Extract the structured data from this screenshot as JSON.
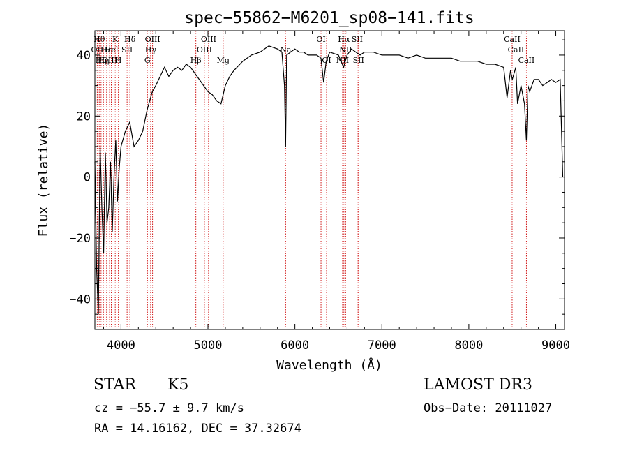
{
  "chart_data": {
    "type": "line",
    "title": "spec−55862−M6201_sp08−141.fits",
    "xlabel": "Wavelength (Å)",
    "ylabel": "Flux (relative)",
    "xlim": [
      3700,
      9100
    ],
    "ylim": [
      -50,
      48
    ],
    "xticks": [
      4000,
      5000,
      6000,
      7000,
      8000,
      9000
    ],
    "yticks": [
      -40,
      -20,
      0,
      20,
      40
    ],
    "grid": false,
    "line_color": "#000000",
    "marker_color": "#cc0000",
    "series": [
      {
        "x": [
          3700,
          3720,
          3740,
          3760,
          3780,
          3800,
          3820,
          3840,
          3860,
          3880,
          3900,
          3920,
          3940,
          3960,
          3980,
          4000,
          4050,
          4100,
          4150,
          4200,
          4250,
          4300,
          4330,
          4360,
          4400,
          4450,
          4500,
          4550,
          4600,
          4650,
          4700,
          4750,
          4800,
          4850,
          4900,
          4950,
          5000,
          5050,
          5100,
          5150,
          5200,
          5250,
          5300,
          5400,
          5500,
          5600,
          5700,
          5800,
          5850,
          5880,
          5893,
          5905,
          5950,
          6000,
          6050,
          6100,
          6150,
          6200,
          6250,
          6300,
          6330,
          6360,
          6400,
          6500,
          6560,
          6600,
          6650,
          6700,
          6750,
          6800,
          6900,
          7000,
          7100,
          7200,
          7300,
          7400,
          7500,
          7600,
          7700,
          7800,
          7900,
          8000,
          8100,
          8200,
          8300,
          8400,
          8440,
          8480,
          8500,
          8540,
          8560,
          8600,
          8640,
          8662,
          8680,
          8700,
          8750,
          8800,
          8850,
          8900,
          8950,
          9000,
          9050,
          9080
        ],
        "y": [
          5,
          -30,
          -45,
          10,
          -10,
          -25,
          8,
          -15,
          -10,
          5,
          -18,
          0,
          12,
          -8,
          3,
          10,
          15,
          18,
          10,
          12,
          15,
          22,
          25,
          28,
          30,
          33,
          36,
          33,
          35,
          36,
          35,
          37,
          36,
          34,
          32,
          30,
          28,
          27,
          25,
          24,
          30,
          33,
          35,
          38,
          40,
          41,
          43,
          42,
          41,
          30,
          10,
          40,
          41,
          42,
          41,
          41,
          40,
          40,
          40,
          39,
          31,
          38,
          41,
          40,
          36,
          40,
          42,
          41,
          40,
          41,
          41,
          40,
          40,
          40,
          39,
          40,
          39,
          39,
          39,
          39,
          38,
          38,
          38,
          37,
          37,
          36,
          26,
          35,
          32,
          36,
          24,
          30,
          24,
          12,
          30,
          28,
          32,
          32,
          30,
          31,
          32,
          31,
          32,
          0
        ]
      }
    ],
    "line_markers": [
      {
        "x": 3727,
        "label": "OII",
        "row": 1
      },
      {
        "x": 3750,
        "label": "Hθ",
        "row": 0
      },
      {
        "x": 3771,
        "label": "Hη",
        "row": 2
      },
      {
        "x": 3798,
        "label": "Hη",
        "row": 2
      },
      {
        "x": 3835,
        "label": "Hε",
        "row": 1
      },
      {
        "x": 3869,
        "label": "OIII",
        "row": 2
      },
      {
        "x": 3889,
        "label": "Hel",
        "row": 1
      },
      {
        "x": 3934,
        "label": "K",
        "row": 0
      },
      {
        "x": 3970,
        "label": "H",
        "row": 2
      },
      {
        "x": 4070,
        "label": "SII",
        "row": 1
      },
      {
        "x": 4102,
        "label": "Hδ",
        "row": 0
      },
      {
        "x": 4304,
        "label": "G",
        "row": 2
      },
      {
        "x": 4341,
        "label": "Hγ",
        "row": 1
      },
      {
        "x": 4363,
        "label": "OIII",
        "row": 0
      },
      {
        "x": 4861,
        "label": "Hβ",
        "row": 2
      },
      {
        "x": 4959,
        "label": "OIII",
        "row": 1
      },
      {
        "x": 5007,
        "label": "OIII",
        "row": 0
      },
      {
        "x": 5175,
        "label": "Mg",
        "row": 2
      },
      {
        "x": 5893,
        "label": "Na",
        "row": 1
      },
      {
        "x": 6300,
        "label": "OI",
        "row": 0
      },
      {
        "x": 6364,
        "label": "OI",
        "row": 2
      },
      {
        "x": 6548,
        "label": "NII",
        "row": 2
      },
      {
        "x": 6563,
        "label": "Hα",
        "row": 0
      },
      {
        "x": 6583,
        "label": "NII",
        "row": 1
      },
      {
        "x": 6716,
        "label": "SII",
        "row": 0
      },
      {
        "x": 6731,
        "label": "SII",
        "row": 2
      },
      {
        "x": 8498,
        "label": "CaII",
        "row": 0
      },
      {
        "x": 8542,
        "label": "CaII",
        "row": 1
      },
      {
        "x": 8662,
        "label": "CaII",
        "row": 2
      }
    ]
  },
  "info": {
    "class": "STAR",
    "subclass": "K5",
    "survey": "LAMOST DR3",
    "cz": "cz = −55.7 ± 9.7 km/s",
    "obs_date": "Obs−Date: 20111027",
    "radec": "RA =  14.16162, DEC =  37.32674"
  }
}
